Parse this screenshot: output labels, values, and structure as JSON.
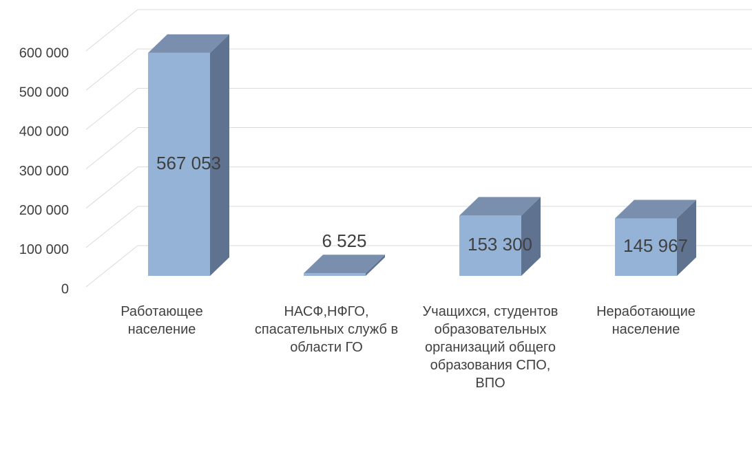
{
  "chart_data": {
    "type": "bar3d",
    "categories": [
      "Работающее население",
      "НАСФ,НФГО, спасательных служб в области ГО",
      "Учащихся, студентов образовательных организаций общего образования СПО, ВПО",
      "Неработающие население"
    ],
    "values": [
      567053,
      6525,
      153300,
      145967
    ],
    "value_labels": [
      "567 053",
      "6 525",
      "153 300",
      "145 967"
    ],
    "color": "#95b3d7",
    "ylim": [
      0,
      600000
    ],
    "yticks": [
      0,
      {
        "value": 100000,
        "label": "100 000"
      },
      {
        "value": 200000,
        "label": "200 000"
      },
      {
        "value": 300000,
        "label": "300 000"
      },
      {
        "value": 400000,
        "label": "400 000"
      },
      {
        "value": 500000,
        "label": "500 000"
      },
      {
        "value": 600000,
        "label": "600 000"
      }
    ],
    "grid": true
  }
}
